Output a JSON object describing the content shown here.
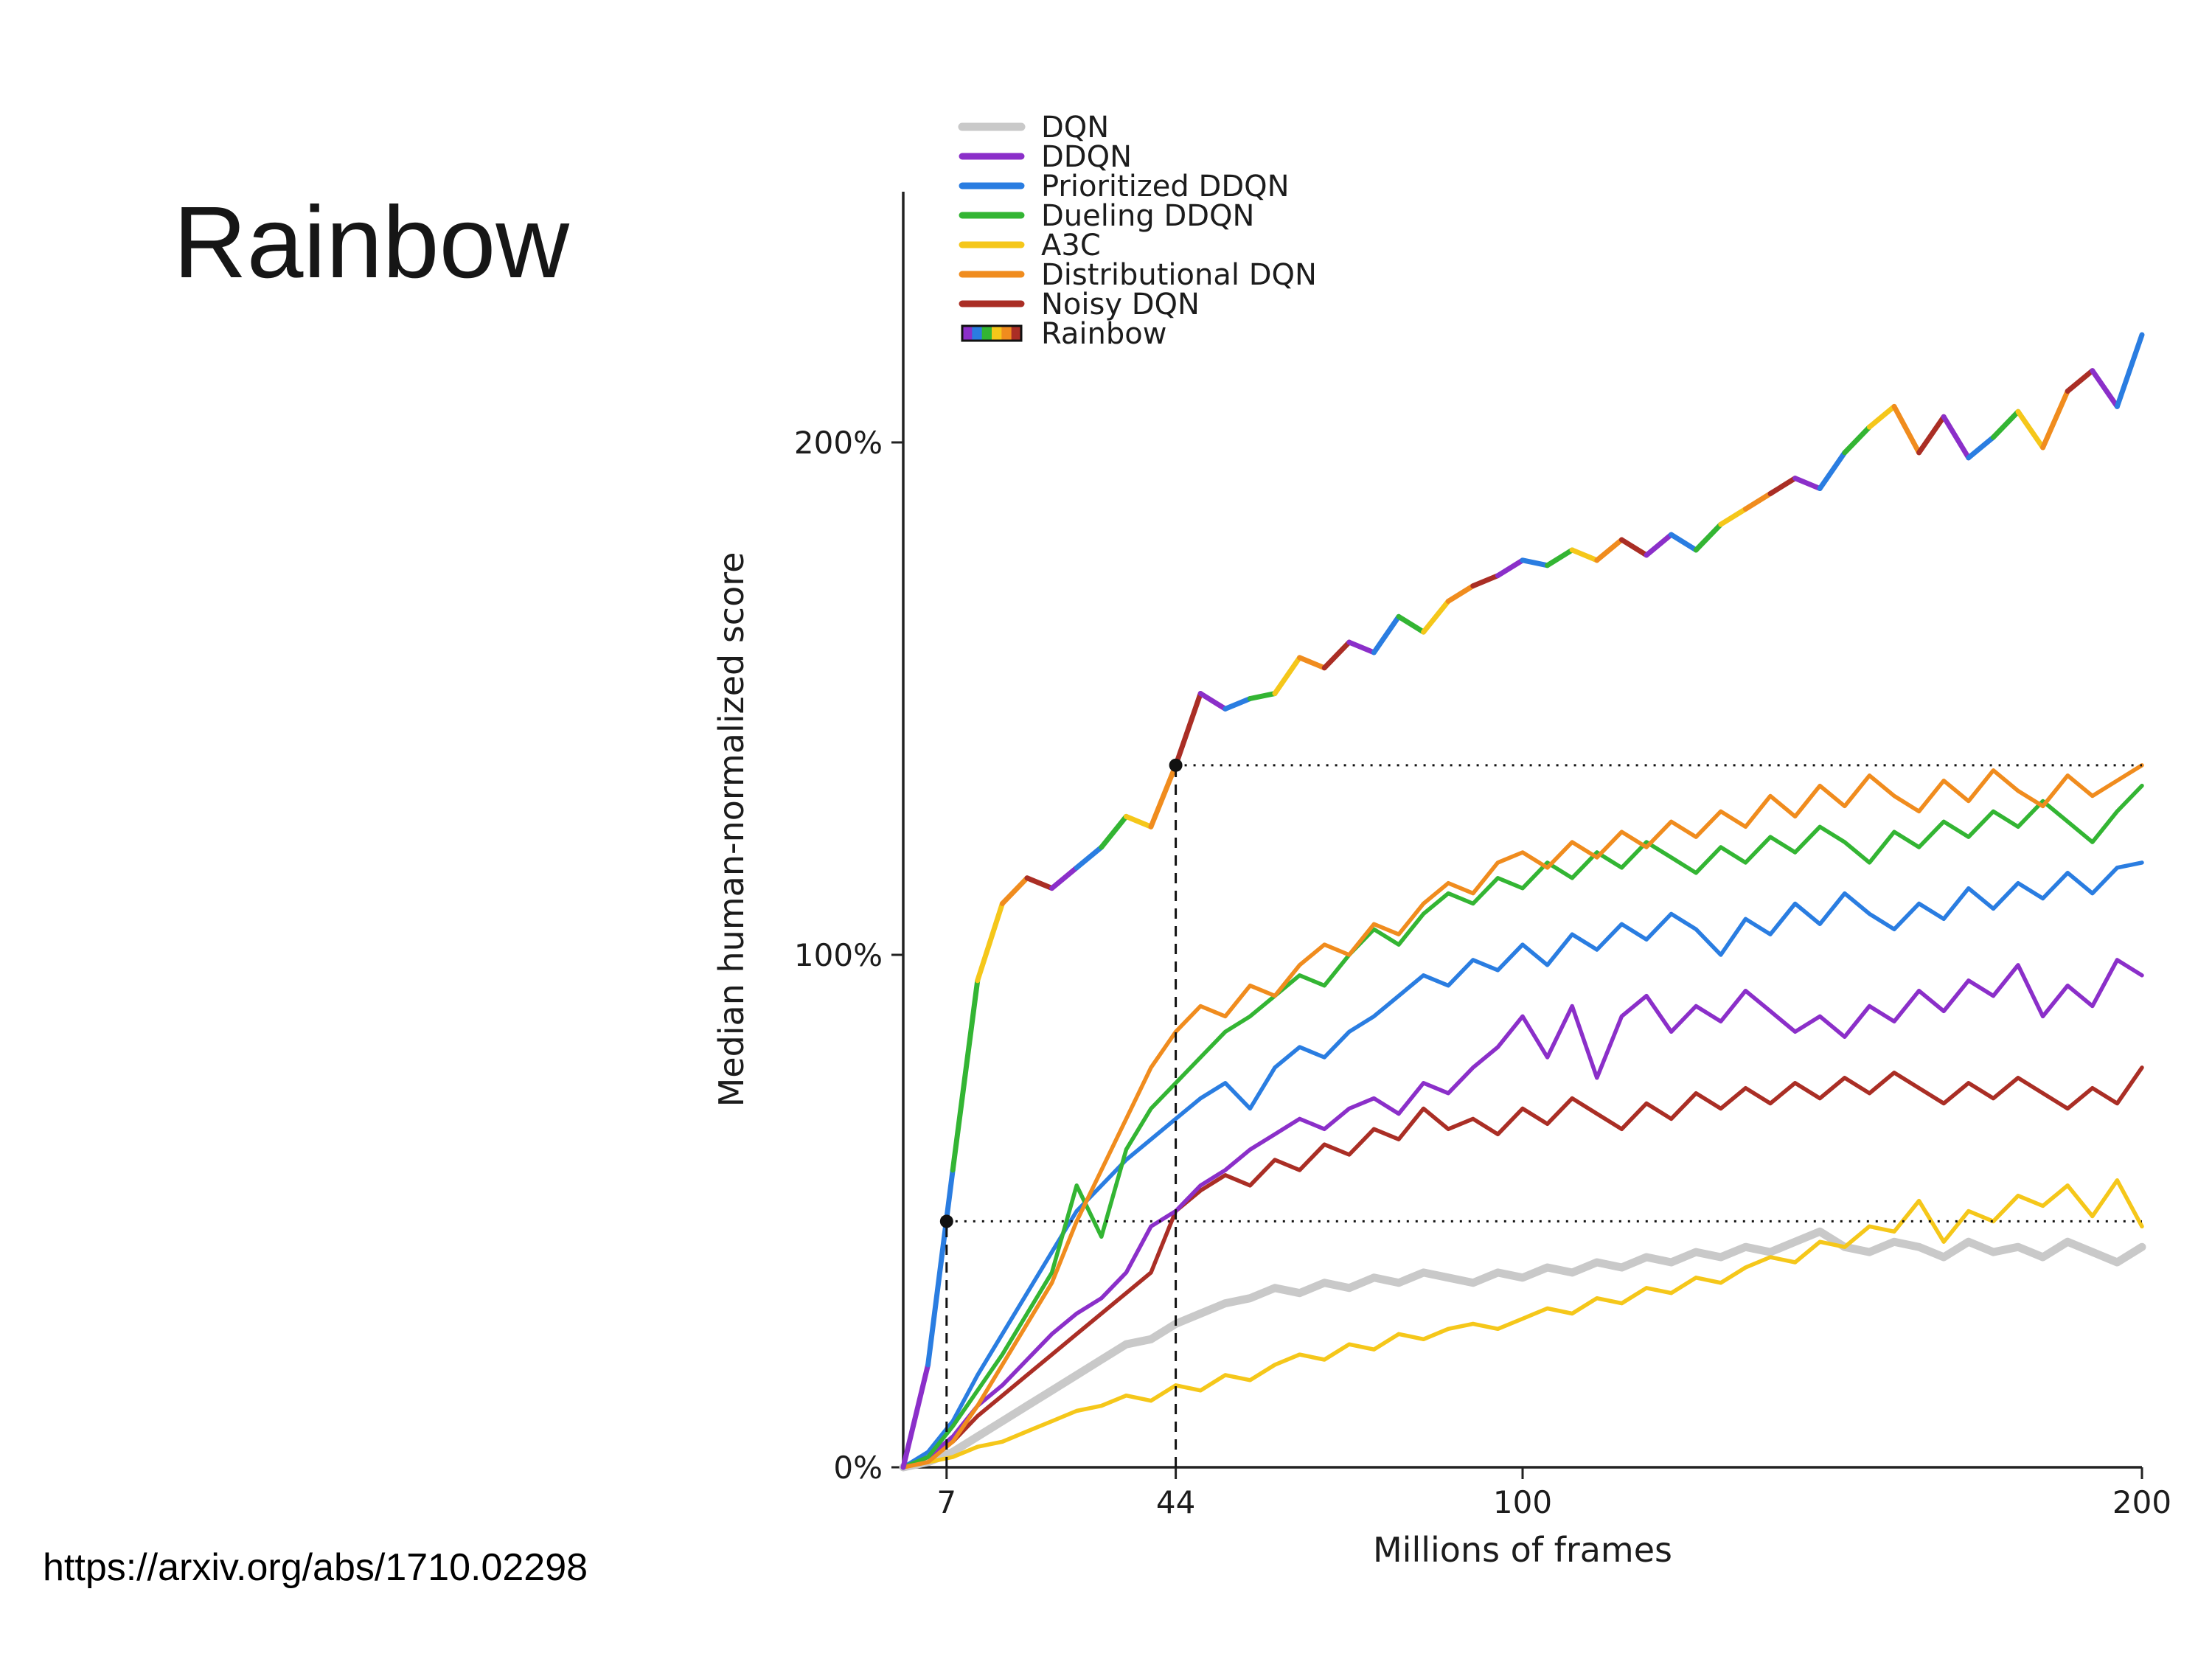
{
  "slide": {
    "title": "Rainbow",
    "source_url": "https://arxiv.org/abs/1710.02298"
  },
  "chart_data": {
    "type": "line",
    "title": "",
    "xlabel": "Millions of frames",
    "ylabel": "Median human-normalized score",
    "xlim": [
      0,
      200
    ],
    "ylim": [
      0,
      235
    ],
    "grid": false,
    "legend_position": "upper-left-inside",
    "x_step": 4,
    "x_ticks": [
      {
        "value": 7,
        "label": "7"
      },
      {
        "value": 44,
        "label": "44"
      },
      {
        "value": 100,
        "label": "100"
      },
      {
        "value": 200,
        "label": "200"
      }
    ],
    "y_ticks": [
      {
        "value": 0,
        "label": "0%"
      },
      {
        "value": 100,
        "label": "100%"
      },
      {
        "value": 200,
        "label": "200%"
      }
    ],
    "rainbow_palette": [
      "#8b2fc9",
      "#2a7de1",
      "#33b533",
      "#f5c71a",
      "#f08c1e",
      "#aa2e25"
    ],
    "series": [
      {
        "name": "DQN",
        "color": "#c9c9c9",
        "width": 11,
        "values": [
          0,
          1,
          3,
          6,
          9,
          12,
          15,
          18,
          21,
          24,
          25,
          28,
          30,
          32,
          33,
          35,
          34,
          36,
          35,
          37,
          36,
          38,
          37,
          36,
          38,
          37,
          39,
          38,
          40,
          39,
          41,
          40,
          42,
          41,
          43,
          42,
          44,
          46,
          43,
          42,
          44,
          43,
          41,
          44,
          42,
          43,
          41,
          44,
          42,
          40,
          43
        ]
      },
      {
        "name": "DDQN",
        "color": "#8b2fc9",
        "width": 5.5,
        "values": [
          0,
          2,
          6,
          12,
          16,
          21,
          26,
          30,
          33,
          38,
          47,
          50,
          55,
          58,
          62,
          65,
          68,
          66,
          70,
          72,
          69,
          75,
          73,
          78,
          82,
          88,
          80,
          90,
          76,
          88,
          92,
          85,
          90,
          87,
          93,
          89,
          85,
          88,
          84,
          90,
          87,
          93,
          89,
          95,
          92,
          98,
          88,
          94,
          90,
          99,
          96
        ]
      },
      {
        "name": "Prioritized DDQN",
        "color": "#2a7de1",
        "width": 5.5,
        "values": [
          0,
          3,
          9,
          18,
          26,
          34,
          42,
          50,
          55,
          60,
          64,
          68,
          72,
          75,
          70,
          78,
          82,
          80,
          85,
          88,
          92,
          96,
          94,
          99,
          97,
          102,
          98,
          104,
          101,
          106,
          103,
          108,
          105,
          100,
          107,
          104,
          110,
          106,
          112,
          108,
          105,
          110,
          107,
          113,
          109,
          114,
          111,
          116,
          112,
          117,
          118
        ]
      },
      {
        "name": "Dueling DDQN",
        "color": "#33b533",
        "width": 5.5,
        "values": [
          0,
          2,
          8,
          15,
          22,
          30,
          38,
          55,
          45,
          62,
          70,
          75,
          80,
          85,
          88,
          92,
          96,
          94,
          100,
          105,
          102,
          108,
          112,
          110,
          115,
          113,
          118,
          115,
          120,
          117,
          122,
          119,
          116,
          121,
          118,
          123,
          120,
          125,
          122,
          118,
          124,
          121,
          126,
          123,
          128,
          125,
          130,
          126,
          122,
          128,
          133
        ]
      },
      {
        "name": "A3C",
        "color": "#f5c71a",
        "width": 5.5,
        "values": [
          0,
          1,
          2,
          4,
          5,
          7,
          9,
          11,
          12,
          14,
          13,
          16,
          15,
          18,
          17,
          20,
          22,
          21,
          24,
          23,
          26,
          25,
          27,
          28,
          27,
          29,
          31,
          30,
          33,
          32,
          35,
          34,
          37,
          36,
          39,
          41,
          40,
          44,
          43,
          47,
          46,
          52,
          44,
          50,
          48,
          53,
          51,
          55,
          49,
          56,
          47
        ]
      },
      {
        "name": "Distributional DQN",
        "color": "#f08c1e",
        "width": 5.5,
        "values": [
          0,
          1,
          5,
          12,
          20,
          28,
          36,
          48,
          58,
          68,
          78,
          85,
          90,
          88,
          94,
          92,
          98,
          102,
          100,
          106,
          104,
          110,
          114,
          112,
          118,
          120,
          117,
          122,
          119,
          124,
          121,
          126,
          123,
          128,
          125,
          131,
          127,
          133,
          129,
          135,
          131,
          128,
          134,
          130,
          136,
          132,
          129,
          135,
          131,
          134,
          137
        ]
      },
      {
        "name": "Noisy DQN",
        "color": "#aa2e25",
        "width": 5.5,
        "values": [
          0,
          2,
          5,
          10,
          14,
          18,
          22,
          26,
          30,
          34,
          38,
          50,
          54,
          57,
          55,
          60,
          58,
          63,
          61,
          66,
          64,
          70,
          66,
          68,
          65,
          70,
          67,
          72,
          69,
          66,
          71,
          68,
          73,
          70,
          74,
          71,
          75,
          72,
          76,
          73,
          77,
          74,
          71,
          75,
          72,
          76,
          73,
          70,
          74,
          71,
          78
        ]
      },
      {
        "name": "Rainbow",
        "color": "rainbow",
        "rainbow": true,
        "width": 7,
        "values": [
          0,
          20,
          58,
          95,
          110,
          115,
          113,
          117,
          121,
          127,
          125,
          137,
          151,
          148,
          150,
          151,
          158,
          156,
          161,
          159,
          166,
          163,
          169,
          172,
          174,
          177,
          176,
          179,
          177,
          181,
          178,
          182,
          179,
          184,
          187,
          190,
          193,
          191,
          198,
          203,
          207,
          198,
          205,
          197,
          201,
          206,
          199,
          210,
          214,
          207,
          221
        ]
      }
    ],
    "annotations": {
      "vlines": [
        {
          "x": 7,
          "y_top": 48
        },
        {
          "x": 44,
          "y_top": 137
        }
      ],
      "hlines": [
        {
          "y": 48,
          "x0": 7,
          "x1": 200
        },
        {
          "y": 137,
          "x0": 44,
          "x1": 200
        }
      ],
      "points": [
        {
          "x": 7,
          "y": 48
        },
        {
          "x": 44,
          "y": 137
        }
      ]
    }
  }
}
